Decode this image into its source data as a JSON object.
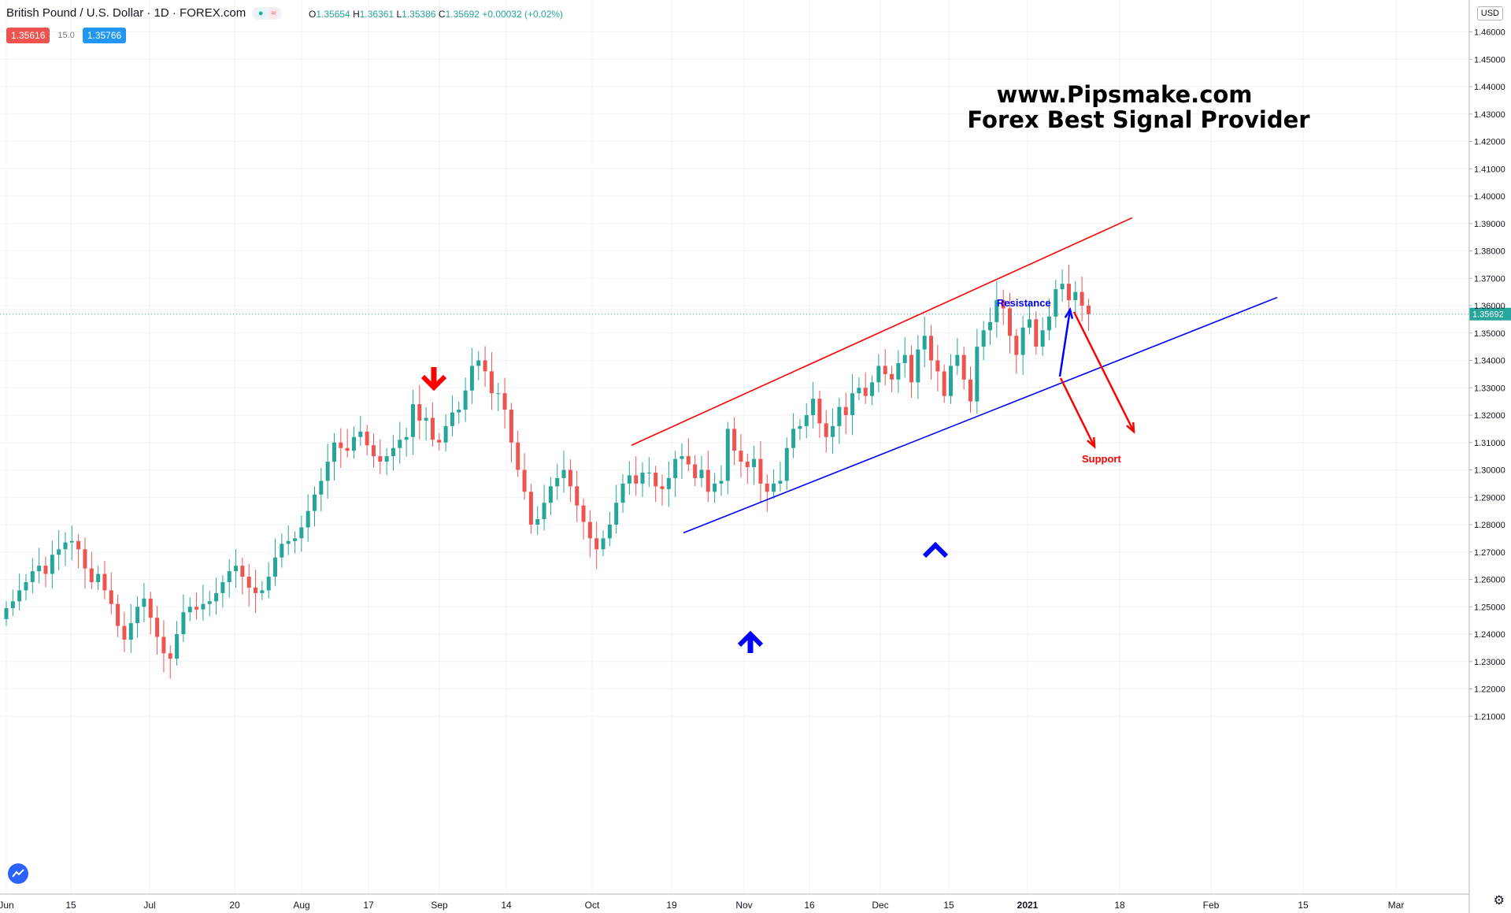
{
  "header": {
    "symbol": "British Pound / U.S. Dollar · 1D · FOREX.com",
    "ohlc": {
      "o_label": "O",
      "o": "1.35654",
      "h_label": "H",
      "h": "1.36361",
      "l_label": "L",
      "l": "1.35386",
      "c_label": "C",
      "c": "1.35692",
      "change": "+0.00032 (+0.02%)"
    },
    "sell_price": "1.35616",
    "spread": "15.0",
    "buy_price": "1.35766",
    "currency": "USD",
    "icons": [
      "dot-icon",
      "wave-icon",
      "tradingview-logo-icon",
      "settings-gear-icon"
    ]
  },
  "chart_data": {
    "type": "candlestick",
    "title": "British Pound / U.S. Dollar",
    "ylim": [
      1.2,
      1.465
    ],
    "last_price": 1.35692,
    "x_tick_labels": [
      "Jun",
      "15",
      "Jul",
      "20",
      "Aug",
      "17",
      "Sep",
      "14",
      "Oct",
      "19",
      "Nov",
      "16",
      "Dec",
      "15",
      "2021",
      "18",
      "Feb",
      "15",
      "Mar"
    ],
    "y_tick_labels": [
      "1.46000",
      "1.45000",
      "1.44000",
      "1.43000",
      "1.42000",
      "1.41000",
      "1.40000",
      "1.39000",
      "1.38000",
      "1.37000",
      "1.36000",
      "1.35000",
      "1.34000",
      "1.33000",
      "1.32000",
      "1.31000",
      "1.30000",
      "1.29000",
      "1.28000",
      "1.27000",
      "1.26000",
      "1.25000",
      "1.24000",
      "1.23000",
      "1.22000",
      "1.21000"
    ],
    "y_tick_values": [
      1.46,
      1.45,
      1.44,
      1.43,
      1.42,
      1.41,
      1.4,
      1.39,
      1.38,
      1.37,
      1.36,
      1.35,
      1.34,
      1.33,
      1.32,
      1.31,
      1.3,
      1.29,
      1.28,
      1.27,
      1.26,
      1.25,
      1.24,
      1.23,
      1.22,
      1.21
    ],
    "closes": [
      1.2495,
      1.252,
      1.256,
      1.259,
      1.263,
      1.265,
      1.262,
      1.269,
      1.271,
      1.2735,
      1.274,
      1.271,
      1.264,
      1.259,
      1.262,
      1.256,
      1.251,
      1.243,
      1.238,
      1.244,
      1.25,
      1.253,
      1.246,
      1.239,
      1.233,
      1.231,
      1.24,
      1.248,
      1.25,
      1.249,
      1.251,
      1.252,
      1.255,
      1.259,
      1.263,
      1.265,
      1.261,
      1.257,
      1.255,
      1.256,
      1.261,
      1.268,
      1.273,
      1.274,
      1.275,
      1.279,
      1.285,
      1.291,
      1.296,
      1.303,
      1.31,
      1.308,
      1.307,
      1.312,
      1.314,
      1.309,
      1.305,
      1.303,
      1.305,
      1.308,
      1.311,
      1.312,
      1.324,
      1.318,
      1.319,
      1.311,
      1.31,
      1.316,
      1.321,
      1.322,
      1.329,
      1.338,
      1.34,
      1.336,
      1.328,
      1.328,
      1.322,
      1.31,
      1.3,
      1.292,
      1.28,
      1.282,
      1.288,
      1.294,
      1.297,
      1.3,
      1.294,
      1.287,
      1.281,
      1.275,
      1.271,
      1.275,
      1.28,
      1.288,
      1.295,
      1.298,
      1.295,
      1.299,
      1.299,
      1.294,
      1.293,
      1.297,
      1.304,
      1.305,
      1.302,
      1.297,
      1.3,
      1.292,
      1.295,
      1.296,
      1.315,
      1.307,
      1.303,
      1.301,
      1.304,
      1.295,
      1.292,
      1.295,
      1.296,
      1.308,
      1.315,
      1.316,
      1.32,
      1.326,
      1.317,
      1.312,
      1.316,
      1.323,
      1.32,
      1.328,
      1.33,
      1.327,
      1.332,
      1.338,
      1.335,
      1.333,
      1.339,
      1.342,
      1.332,
      1.344,
      1.349,
      1.34,
      1.336,
      1.327,
      1.338,
      1.342,
      1.333,
      1.325,
      1.345,
      1.351,
      1.354,
      1.362,
      1.359,
      1.349,
      1.342,
      1.352,
      1.355,
      1.345,
      1.351,
      1.356,
      1.366,
      1.368,
      1.362,
      1.365,
      1.36,
      1.3569
    ],
    "annotations": {
      "resistance_label": "Resistance",
      "support_label": "Support",
      "watermark_line1": "www.Pipsmake.com",
      "watermark_line2": "Forex Best Signal Provider"
    },
    "colors": {
      "bull": "#26a69a",
      "bear": "#ef5350",
      "resistance": "#ff0000",
      "support": "#0000ff",
      "grid": "#f0f3fa",
      "price_line": "#26a69a"
    }
  }
}
